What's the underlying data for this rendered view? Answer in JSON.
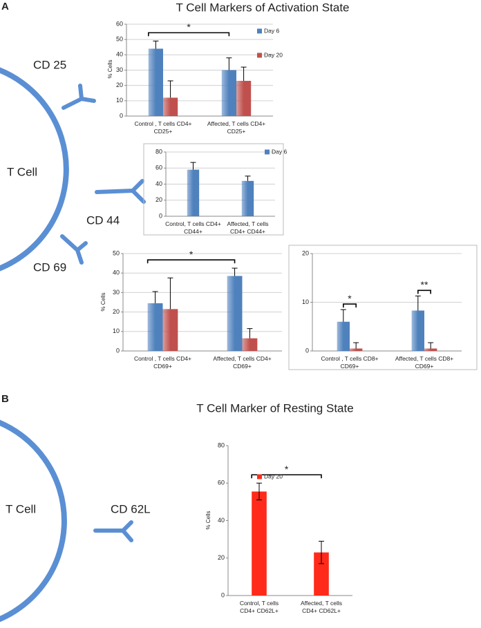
{
  "figure": {
    "panels": [
      {
        "label": "A",
        "title": "T Cell Markers of  Activation State",
        "cell_labels": [
          "CD 25",
          "T Cell",
          "CD 44",
          "CD 69"
        ]
      },
      {
        "label": "B",
        "title": "T Cell Marker of  Resting State",
        "cell_labels": [
          "T Cell",
          "CD 62L"
        ]
      }
    ]
  },
  "chart_data": [
    {
      "type": "bar",
      "categories": [
        "Control , T cells CD4+\nCD25+",
        "Affected, T cells CD4+\nCD25+"
      ],
      "series": [
        {
          "name": "Day 6",
          "color": "#4f81bd",
          "values": [
            44,
            30
          ],
          "errors": [
            5,
            8
          ]
        },
        {
          "name": "Day 20",
          "color": "#c0504d",
          "values": [
            12,
            23
          ],
          "errors": [
            11,
            9
          ]
        }
      ],
      "ylim": [
        0,
        60
      ],
      "yticks": [
        0,
        10,
        20,
        30,
        40,
        50,
        60
      ],
      "ylabel": "% Cells",
      "annotations": [
        "*"
      ],
      "grid": true,
      "errorbar": "plus"
    },
    {
      "type": "bar",
      "categories": [
        "Control, T cells CD4+\nCD44+",
        "Affected, T cells\nCD4+ CD44+"
      ],
      "series": [
        {
          "name": "Day 6",
          "color": "#4f81bd",
          "values": [
            58,
            44
          ],
          "errors": [
            9,
            6
          ]
        }
      ],
      "ylim": [
        0,
        80
      ],
      "yticks": [
        0,
        20,
        40,
        60,
        80
      ],
      "annotations": [],
      "grid": true,
      "errorbar": "plus"
    },
    {
      "type": "bar",
      "categories": [
        "Control , T cells CD4+\nCD69+",
        "Affected, T cells CD4+\nCD69+"
      ],
      "series": [
        {
          "color": "#4f81bd",
          "values": [
            24.5,
            38.5
          ],
          "errors": [
            6,
            4
          ]
        },
        {
          "color": "#c0504d",
          "values": [
            21.5,
            6.5
          ],
          "errors": [
            16,
            5
          ]
        }
      ],
      "ylim": [
        0,
        50
      ],
      "yticks": [
        0,
        10,
        20,
        30,
        40,
        50
      ],
      "ylabel": "% Cells",
      "annotations": [
        "*"
      ],
      "grid": true,
      "errorbar": "plus"
    },
    {
      "type": "bar",
      "categories": [
        "Control , T cells CD8+\nCD69+",
        "Affected, T cells CD8+\nCD69+"
      ],
      "series": [
        {
          "color": "#4f81bd",
          "values": [
            6,
            8.3
          ],
          "errors": [
            2.5,
            3
          ]
        },
        {
          "color": "#c0504d",
          "values": [
            0.5,
            0.5
          ],
          "errors": [
            1.2,
            1.2
          ]
        }
      ],
      "ylim": [
        0,
        20
      ],
      "yticks": [
        0,
        10,
        20
      ],
      "annotations": [
        "*",
        "**"
      ],
      "grid": true,
      "errorbar": "plus"
    },
    {
      "type": "bar",
      "categories": [
        "Control, T cells\nCD4+ CD62L+",
        "Affected, T cells\nCD4+ CD62L+"
      ],
      "series": [
        {
          "name": "Day 20",
          "color": "#ff2a1a",
          "values": [
            55.5,
            23
          ],
          "errors": [
            4.5,
            6
          ]
        }
      ],
      "ylim": [
        0,
        80
      ],
      "yticks": [
        0,
        20,
        40,
        60,
        80
      ],
      "ylabel": "% Cells",
      "annotations": [
        "*"
      ],
      "grid": false,
      "errorbar": "both"
    }
  ]
}
